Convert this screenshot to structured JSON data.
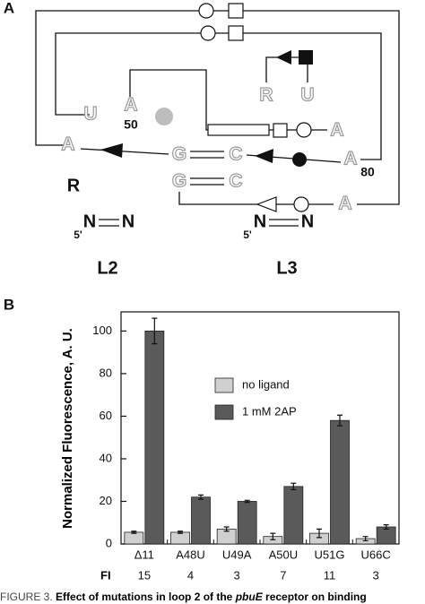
{
  "panel_a": {
    "label": "A",
    "texts": [
      "U",
      "A",
      "50",
      "A",
      "G",
      "C",
      "A",
      "R",
      "U",
      "A",
      "80",
      "G",
      "C",
      "A",
      "R",
      "N",
      "N",
      "5'",
      "N",
      "N",
      "5'",
      "L2",
      "L3"
    ]
  },
  "chart_data": {
    "type": "bar",
    "panel_label": "B",
    "ylabel": "Normalized Fluorescence, A. U.",
    "categories": [
      "Δ11",
      "A48U",
      "U49A",
      "A50U",
      "U51G",
      "U66C"
    ],
    "series": [
      {
        "name": "no ligand",
        "color": "#d0d0d0",
        "values": [
          5.5,
          5.5,
          7,
          3.5,
          5,
          2.5
        ],
        "errors": [
          0.5,
          0.5,
          1,
          1.5,
          2,
          1
        ]
      },
      {
        "name": "1 mM 2AP",
        "color": "#5a5a5a",
        "values": [
          100,
          22,
          20,
          27,
          58,
          8
        ],
        "errors": [
          6,
          1,
          0.5,
          1.5,
          2.5,
          1
        ]
      }
    ],
    "ylim": [
      0,
      109
    ],
    "yticks": [
      0,
      20,
      40,
      60,
      80,
      100
    ]
  },
  "fi_row": {
    "label": "FI",
    "values": [
      15,
      4,
      3,
      7,
      11,
      3
    ]
  },
  "caption": {
    "prefix": "FIGURE 3.",
    "parts": [
      "Effect of mutations in loop 2 of the ",
      "pbuE",
      " receptor on binding"
    ]
  }
}
